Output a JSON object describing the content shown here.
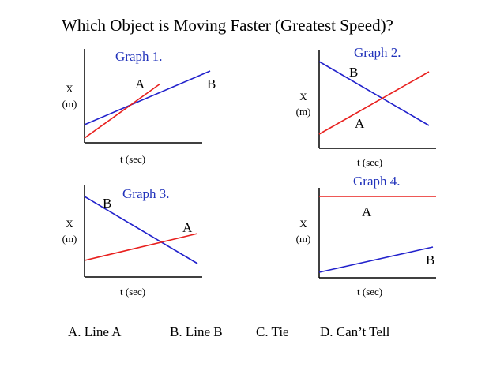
{
  "title": "Which Object is Moving Faster (Greatest Speed)?",
  "colors": {
    "line_a": "#e8201e",
    "line_b": "#2222cc",
    "graph_title": "#2233bb",
    "axis": "#000000"
  },
  "graphs": [
    {
      "title": "Graph 1.",
      "y_label_top": "X",
      "y_label_bottom": "(m)",
      "x_label": "t (sec)",
      "label_a": "A",
      "label_b": "B"
    },
    {
      "title": "Graph 2.",
      "y_label_top": "X",
      "y_label_bottom": "(m)",
      "x_label": "t (sec)",
      "label_a": "A",
      "label_b": "B"
    },
    {
      "title": "Graph 3.",
      "y_label_top": "X",
      "y_label_bottom": "(m)",
      "x_label": "t (sec)",
      "label_a": "A",
      "label_b": "B"
    },
    {
      "title": "Graph 4.",
      "y_label_top": "X",
      "y_label_bottom": "(m)",
      "x_label": "t (sec)",
      "label_a": "A",
      "label_b": "B"
    }
  ],
  "choices": [
    "A.  Line A",
    "B. Line B",
    "C. Tie",
    "D. Can’t Tell"
  ]
}
